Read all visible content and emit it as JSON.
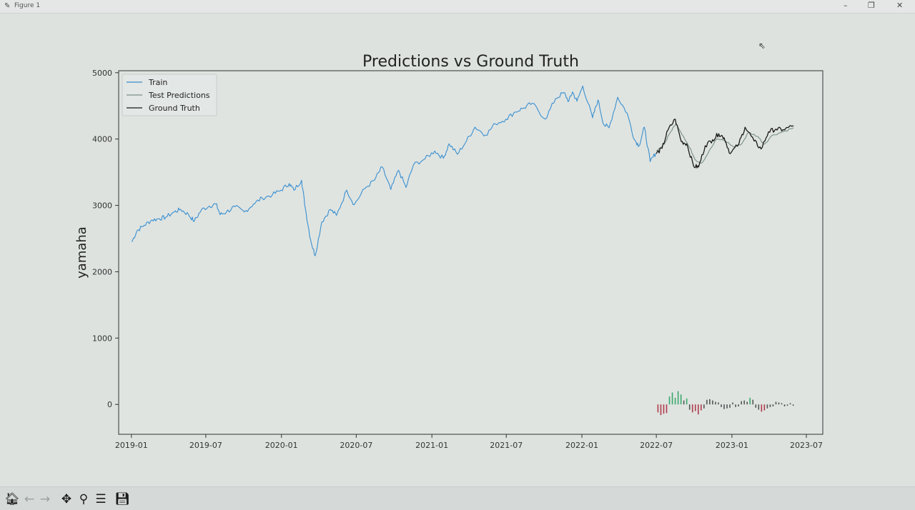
{
  "window": {
    "title": "Figure 1",
    "icons": {
      "app": "matplotlib-icon",
      "minimize": "minimize-icon",
      "restore": "restore-icon",
      "close": "close-icon"
    },
    "minimize_glyph": "–",
    "restore_glyph": "❐",
    "close_glyph": "✕"
  },
  "toolbar": {
    "tools": [
      {
        "name": "home-icon",
        "glyph": "🏠︎",
        "enabled": true
      },
      {
        "name": "back-icon",
        "glyph": "←",
        "enabled": false
      },
      {
        "name": "forward-icon",
        "glyph": "→",
        "enabled": false
      },
      {
        "name": "pan-icon",
        "glyph": "✥",
        "enabled": true
      },
      {
        "name": "zoom-icon",
        "glyph": "⚲",
        "enabled": true
      },
      {
        "name": "configure-subplots-icon",
        "glyph": "☰",
        "enabled": true
      },
      {
        "name": "save-icon",
        "glyph": "💾︎",
        "enabled": true
      }
    ]
  },
  "colors": {
    "train": "#3a8fd0",
    "test_predictions": "#7a8f86",
    "ground_truth": "#1a1a1a",
    "bar_up": "#3aa76a",
    "bar_down": "#b03a4a",
    "bar_neutral": "#555555",
    "axes_bg": "#dfe4e1"
  },
  "chart_data": {
    "type": "line",
    "title": "Predictions vs Ground Truth",
    "xlabel": "",
    "ylabel": "yamaha",
    "xlim": [
      "2018-12-01",
      "2023-08-10"
    ],
    "ylim": [
      -450,
      5030
    ],
    "yticks": [
      0,
      1000,
      2000,
      3000,
      4000,
      5000
    ],
    "xticks": [
      "2019-01",
      "2019-07",
      "2020-01",
      "2020-07",
      "2021-01",
      "2021-07",
      "2022-01",
      "2022-07",
      "2023-01",
      "2023-07"
    ],
    "legend": {
      "placement": "top-left",
      "entries": [
        "Train",
        "Test Predictions",
        "Ground Truth"
      ]
    },
    "grid": false,
    "series": [
      {
        "name": "Train",
        "points": [
          [
            "2019-01-02",
            2450
          ],
          [
            "2019-01-15",
            2620
          ],
          [
            "2019-02-01",
            2700
          ],
          [
            "2019-02-20",
            2780
          ],
          [
            "2019-03-10",
            2800
          ],
          [
            "2019-03-25",
            2820
          ],
          [
            "2019-04-15",
            2900
          ],
          [
            "2019-05-01",
            2940
          ],
          [
            "2019-05-20",
            2860
          ],
          [
            "2019-06-03",
            2760
          ],
          [
            "2019-06-20",
            2930
          ],
          [
            "2019-07-10",
            2990
          ],
          [
            "2019-07-26",
            3020
          ],
          [
            "2019-08-05",
            2860
          ],
          [
            "2019-08-20",
            2900
          ],
          [
            "2019-09-10",
            2980
          ],
          [
            "2019-10-03",
            2900
          ],
          [
            "2019-10-25",
            3020
          ],
          [
            "2019-11-15",
            3110
          ],
          [
            "2019-12-10",
            3160
          ],
          [
            "2019-12-31",
            3230
          ],
          [
            "2020-01-20",
            3330
          ],
          [
            "2020-01-31",
            3230
          ],
          [
            "2020-02-19",
            3380
          ],
          [
            "2020-02-28",
            2960
          ],
          [
            "2020-03-12",
            2480
          ],
          [
            "2020-03-23",
            2240
          ],
          [
            "2020-04-08",
            2750
          ],
          [
            "2020-04-29",
            2940
          ],
          [
            "2020-05-14",
            2850
          ],
          [
            "2020-06-08",
            3230
          ],
          [
            "2020-06-26",
            3010
          ],
          [
            "2020-07-21",
            3250
          ],
          [
            "2020-08-14",
            3380
          ],
          [
            "2020-09-02",
            3580
          ],
          [
            "2020-09-23",
            3240
          ],
          [
            "2020-10-12",
            3530
          ],
          [
            "2020-10-30",
            3270
          ],
          [
            "2020-11-17",
            3610
          ],
          [
            "2020-12-15",
            3700
          ],
          [
            "2021-01-08",
            3820
          ],
          [
            "2021-01-29",
            3710
          ],
          [
            "2021-02-12",
            3930
          ],
          [
            "2021-03-04",
            3770
          ],
          [
            "2021-03-26",
            3970
          ],
          [
            "2021-04-16",
            4180
          ],
          [
            "2021-05-12",
            4060
          ],
          [
            "2021-06-04",
            4230
          ],
          [
            "2021-06-30",
            4300
          ],
          [
            "2021-07-23",
            4410
          ],
          [
            "2021-08-13",
            4470
          ],
          [
            "2021-09-02",
            4540
          ],
          [
            "2021-10-04",
            4300
          ],
          [
            "2021-10-29",
            4610
          ],
          [
            "2021-11-18",
            4700
          ],
          [
            "2021-11-30",
            4570
          ],
          [
            "2021-12-09",
            4710
          ],
          [
            "2021-12-20",
            4570
          ],
          [
            "2022-01-03",
            4800
          ],
          [
            "2022-01-27",
            4320
          ],
          [
            "2022-02-09",
            4590
          ],
          [
            "2022-02-23",
            4220
          ],
          [
            "2022-03-08",
            4170
          ],
          [
            "2022-03-29",
            4630
          ],
          [
            "2022-04-21",
            4390
          ],
          [
            "2022-05-09",
            3990
          ],
          [
            "2022-05-20",
            3900
          ],
          [
            "2022-06-02",
            4180
          ],
          [
            "2022-06-16",
            3660
          ],
          [
            "2022-06-30",
            3790
          ]
        ]
      },
      {
        "name": "Test Predictions",
        "points": [
          [
            "2022-07-01",
            3820
          ],
          [
            "2022-07-20",
            3920
          ],
          [
            "2022-08-05",
            4110
          ],
          [
            "2022-08-18",
            4240
          ],
          [
            "2022-09-05",
            4040
          ],
          [
            "2022-09-20",
            3870
          ],
          [
            "2022-10-05",
            3680
          ],
          [
            "2022-10-20",
            3640
          ],
          [
            "2022-11-05",
            3800
          ],
          [
            "2022-11-25",
            4000
          ],
          [
            "2022-12-15",
            3980
          ],
          [
            "2023-01-05",
            3880
          ],
          [
            "2023-01-25",
            3930
          ],
          [
            "2023-02-10",
            4100
          ],
          [
            "2023-03-05",
            4040
          ],
          [
            "2023-03-20",
            3920
          ],
          [
            "2023-04-10",
            4060
          ],
          [
            "2023-05-05",
            4110
          ],
          [
            "2023-05-31",
            4170
          ]
        ]
      },
      {
        "name": "Ground Truth",
        "points": [
          [
            "2022-07-01",
            3780
          ],
          [
            "2022-07-15",
            3860
          ],
          [
            "2022-07-29",
            4130
          ],
          [
            "2022-08-16",
            4300
          ],
          [
            "2022-08-31",
            3960
          ],
          [
            "2022-09-13",
            3930
          ],
          [
            "2022-09-30",
            3590
          ],
          [
            "2022-10-12",
            3580
          ],
          [
            "2022-10-28",
            3900
          ],
          [
            "2022-11-15",
            3990
          ],
          [
            "2022-11-30",
            4080
          ],
          [
            "2022-12-13",
            4020
          ],
          [
            "2022-12-28",
            3780
          ],
          [
            "2023-01-18",
            3930
          ],
          [
            "2023-02-02",
            4180
          ],
          [
            "2023-02-24",
            3970
          ],
          [
            "2023-03-13",
            3850
          ],
          [
            "2023-03-31",
            4110
          ],
          [
            "2023-04-18",
            4150
          ],
          [
            "2023-05-05",
            4140
          ],
          [
            "2023-05-31",
            4200
          ]
        ]
      }
    ],
    "residual_bars": {
      "note": "small bars around zero under the test period",
      "points": [
        [
          "2022-07-05",
          -120
        ],
        [
          "2022-07-12",
          -160
        ],
        [
          "2022-07-19",
          -140
        ],
        [
          "2022-07-26",
          -130
        ],
        [
          "2022-08-02",
          120
        ],
        [
          "2022-08-09",
          180
        ],
        [
          "2022-08-16",
          100
        ],
        [
          "2022-08-23",
          200
        ],
        [
          "2022-08-30",
          150
        ],
        [
          "2022-09-06",
          60
        ],
        [
          "2022-09-13",
          90
        ],
        [
          "2022-09-20",
          -80
        ],
        [
          "2022-09-27",
          -120
        ],
        [
          "2022-10-04",
          -100
        ],
        [
          "2022-10-11",
          -150
        ],
        [
          "2022-10-18",
          -90
        ],
        [
          "2022-10-25",
          -60
        ],
        [
          "2022-11-01",
          70
        ],
        [
          "2022-11-08",
          80
        ],
        [
          "2022-11-15",
          60
        ],
        [
          "2022-11-22",
          40
        ],
        [
          "2022-11-29",
          30
        ],
        [
          "2022-12-06",
          -40
        ],
        [
          "2022-12-13",
          -70
        ],
        [
          "2022-12-20",
          -60
        ],
        [
          "2022-12-27",
          -50
        ],
        [
          "2023-01-03",
          30
        ],
        [
          "2023-01-10",
          -40
        ],
        [
          "2023-01-17",
          -30
        ],
        [
          "2023-01-24",
          50
        ],
        [
          "2023-01-31",
          60
        ],
        [
          "2023-02-07",
          40
        ],
        [
          "2023-02-14",
          100
        ],
        [
          "2023-02-21",
          70
        ],
        [
          "2023-02-28",
          -50
        ],
        [
          "2023-03-07",
          -80
        ],
        [
          "2023-03-14",
          -110
        ],
        [
          "2023-03-21",
          -90
        ],
        [
          "2023-03-28",
          -60
        ],
        [
          "2023-04-04",
          -40
        ],
        [
          "2023-04-11",
          -30
        ],
        [
          "2023-04-18",
          40
        ],
        [
          "2023-04-25",
          30
        ],
        [
          "2023-05-02",
          20
        ],
        [
          "2023-05-09",
          -30
        ],
        [
          "2023-05-16",
          -20
        ],
        [
          "2023-05-23",
          20
        ],
        [
          "2023-05-30",
          -20
        ]
      ]
    }
  }
}
